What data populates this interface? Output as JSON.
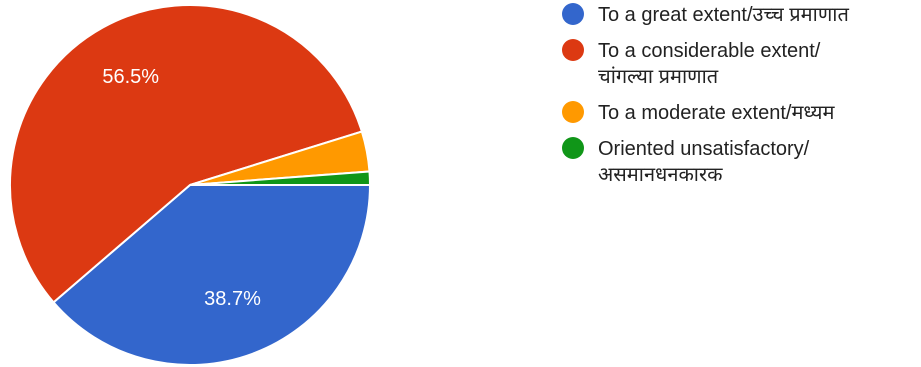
{
  "chart_data": {
    "type": "pie",
    "slices": [
      {
        "label": "To a great extent/उच्च प्रमाणात",
        "value": 38.7,
        "color": "#3366cc",
        "display_label": "38.7%"
      },
      {
        "label": "To a considerable extent/ चांगल्या प्रमाणात",
        "value": 56.5,
        "color": "#dc3912",
        "display_label": "56.5%"
      },
      {
        "label": "To a moderate extent/मध्यम",
        "value": 3.6,
        "color": "#ff9900",
        "display_label": ""
      },
      {
        "label": "Oriented unsatisfactory/ असमानधनकारक",
        "value": 1.2,
        "color": "#109618",
        "display_label": ""
      }
    ],
    "legend_position": "right"
  },
  "legend": {
    "items": [
      {
        "line1": "To a great extent/उच्च प्रमाणात",
        "line2": "",
        "color": "#3366cc"
      },
      {
        "line1": "To a considerable extent/",
        "line2": "चांगल्या प्रमाणात",
        "color": "#dc3912"
      },
      {
        "line1": "To a moderate extent/मध्यम",
        "line2": "",
        "color": "#ff9900"
      },
      {
        "line1": "Oriented unsatisfactory/",
        "line2": "असमानधनकारक",
        "color": "#109618"
      }
    ]
  }
}
